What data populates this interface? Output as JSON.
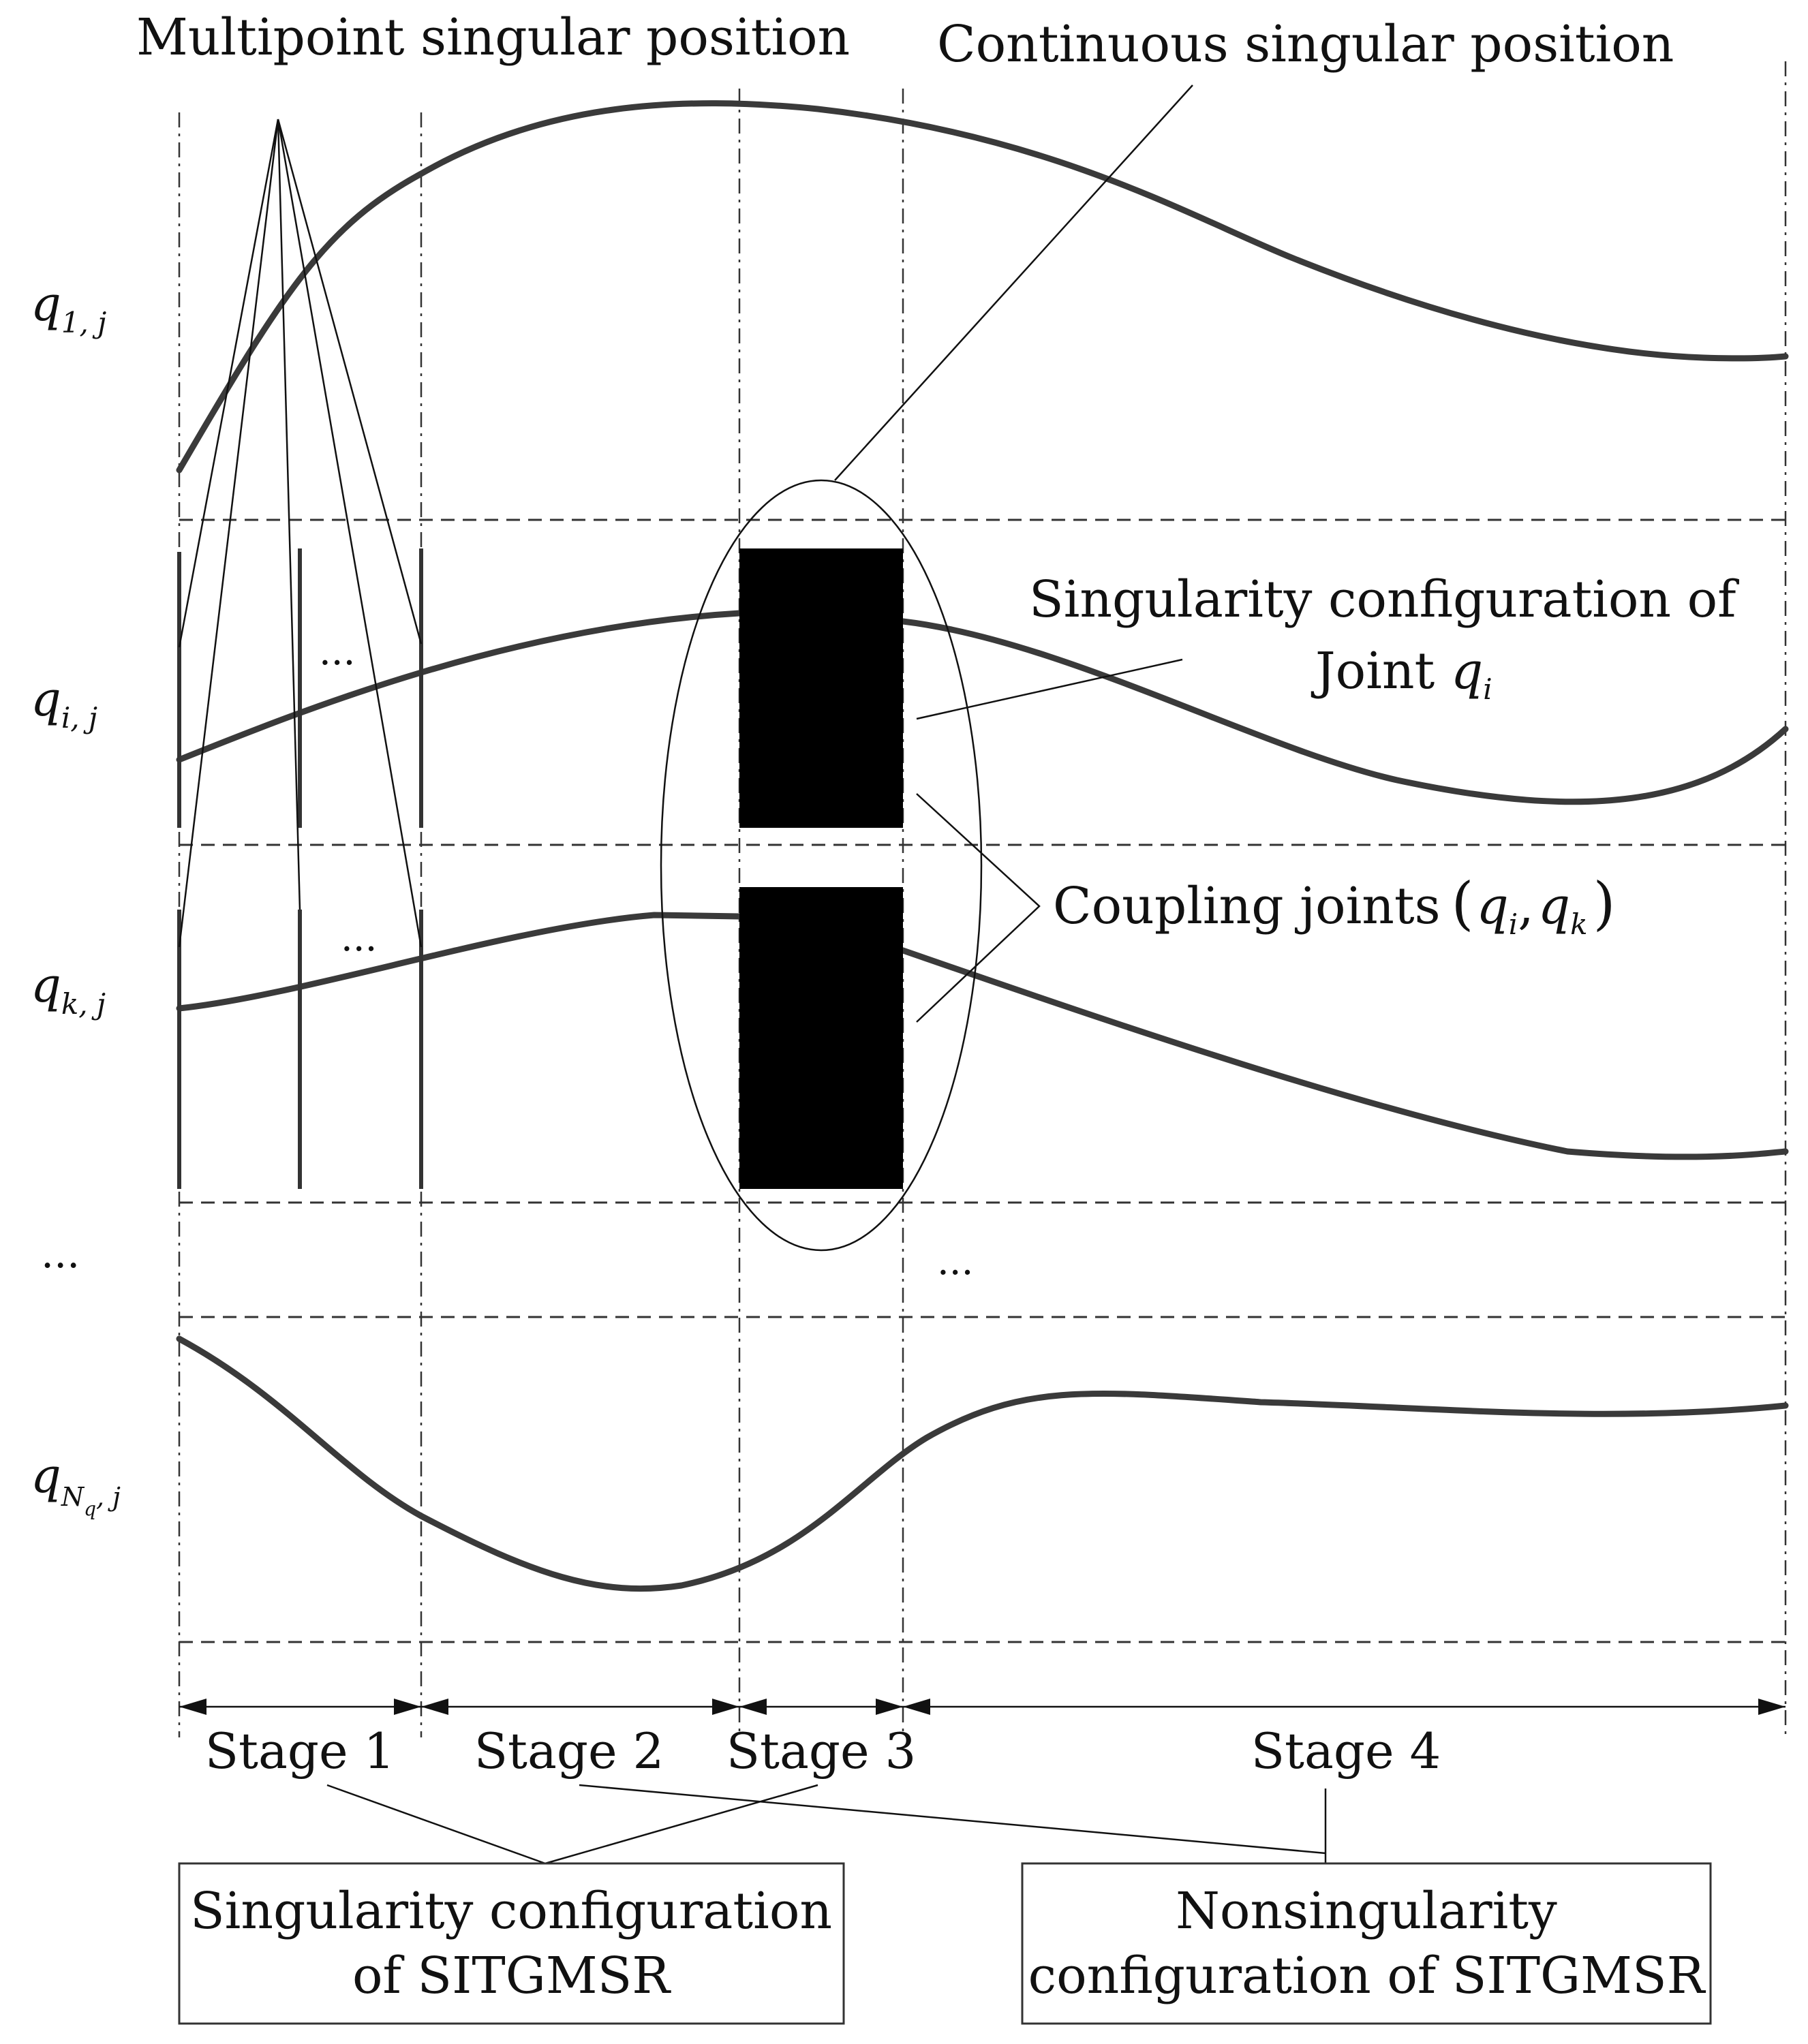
{
  "title_multipoint": "Multipoint singular position",
  "title_continuous": "Continuous singular position",
  "rows": {
    "q1j": {
      "base": "q",
      "sub": "1, j"
    },
    "qij": {
      "base": "q",
      "sub": "i, j"
    },
    "qkj": {
      "base": "q",
      "sub": "k, j"
    },
    "ellipsis": "...",
    "qNqj": {
      "base": "q",
      "sub": "N",
      "subsub": "q",
      "sub_tail": ", j"
    }
  },
  "ellipses": {
    "row_i": "...",
    "row_k": "...",
    "center": "..."
  },
  "annotations": {
    "singularity_joint_line1": "Singularity configuration of",
    "singularity_joint_line2_prefix": "Joint ",
    "joint_var": "q",
    "joint_sub": "i",
    "coupling_prefix": "Coupling joints",
    "coupling_open": "(",
    "coupling_qi": "q",
    "coupling_qi_sub": "i",
    "coupling_comma": ",",
    "coupling_qk": "q",
    "coupling_qk_sub": "k",
    "coupling_close": ")"
  },
  "stages": [
    "Stage 1",
    "Stage 2",
    "Stage 3",
    "Stage 4"
  ],
  "boxes": {
    "singular_line1": "Singularity configuration",
    "singular_line2": "of SITGMSR",
    "nonsingular_line1": "Nonsingularity",
    "nonsingular_line2": "configuration of SITGMSR"
  },
  "colors": {
    "curve": "#3a3a3a",
    "block": "#000000",
    "line": "#111111"
  }
}
